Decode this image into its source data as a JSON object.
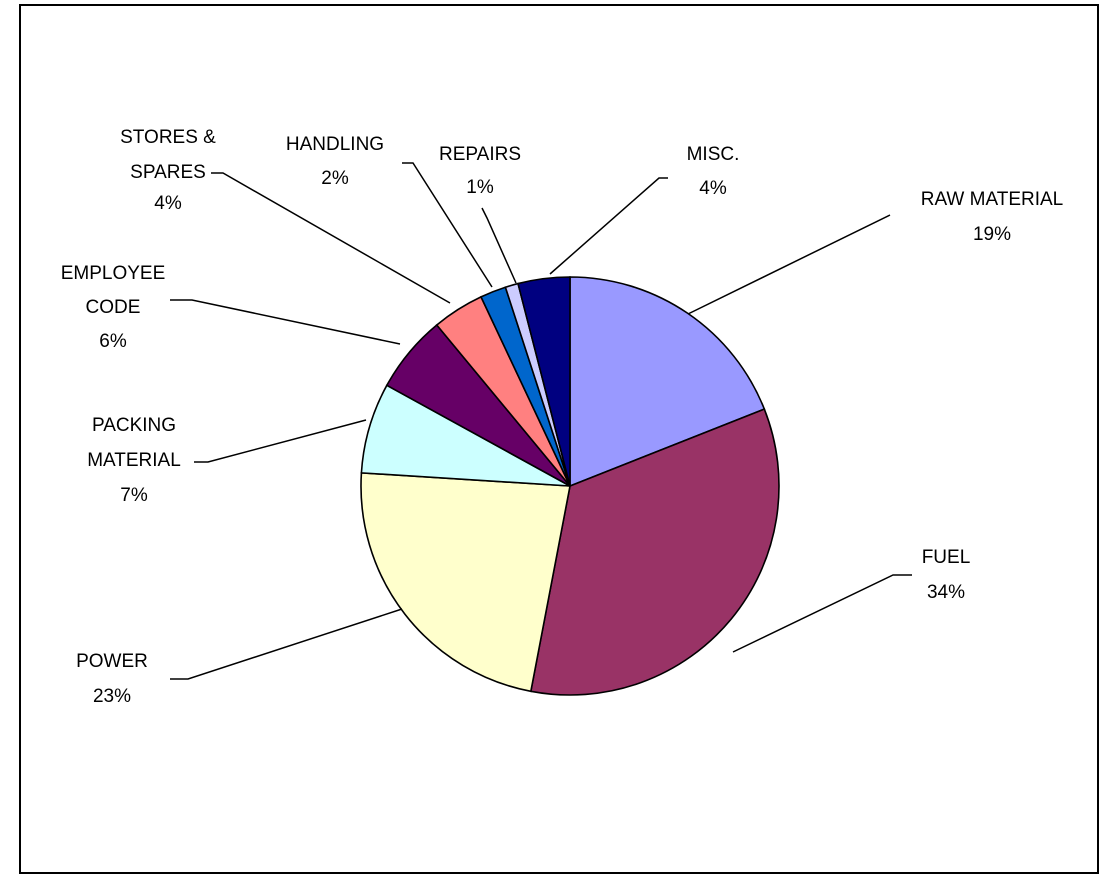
{
  "chart_data": {
    "type": "pie",
    "title": "",
    "slices": [
      {
        "label": "RAW MATERIAL",
        "value": 19,
        "value_label": "19%",
        "color": "#9999FF"
      },
      {
        "label": "FUEL",
        "value": 34,
        "value_label": "34%",
        "color": "#993366"
      },
      {
        "label": "POWER",
        "value": 23,
        "value_label": "23%",
        "color": "#FFFFCC"
      },
      {
        "label": "PACKING MATERIAL",
        "value": 7,
        "value_label": "7%",
        "color": "#CCFFFF"
      },
      {
        "label": "EMPLOYEE CODE",
        "value": 6,
        "value_label": "6%",
        "color": "#660066"
      },
      {
        "label": "STORES & SPARES",
        "value": 4,
        "value_label": "4%",
        "color": "#FF8080"
      },
      {
        "label": "HANDLING",
        "value": 2,
        "value_label": "2%",
        "color": "#0066CC"
      },
      {
        "label": "REPAIRS",
        "value": 1,
        "value_label": "1%",
        "color": "#CCCCFF"
      },
      {
        "label": "MISC.",
        "value": 4,
        "value_label": "4%",
        "color": "#000080"
      }
    ],
    "legend": "none",
    "labels": "outside-with-leader-lines"
  }
}
